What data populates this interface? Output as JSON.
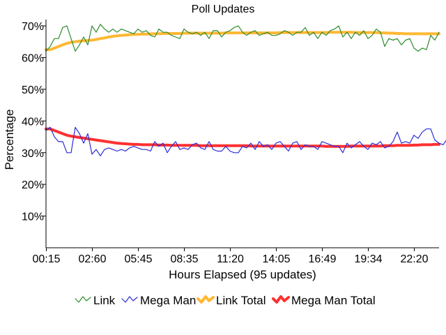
{
  "chart_data": {
    "type": "line",
    "title": "Poll Updates",
    "xlabel": "Hours Elapsed (95 updates)",
    "ylabel": "Percentage",
    "ylim": [
      0,
      72
    ],
    "y_ticks": [
      "10%",
      "20%",
      "30%",
      "40%",
      "50%",
      "60%",
      "70%"
    ],
    "y_tick_values": [
      10,
      20,
      30,
      40,
      50,
      60,
      70
    ],
    "x_ticks": [
      "00:15",
      "02:60",
      "05:45",
      "08:35",
      "11:20",
      "14:05",
      "16:49",
      "19:34",
      "22:20"
    ],
    "x_tick_indices": [
      0,
      11,
      22,
      33,
      44,
      55,
      66,
      77,
      88
    ],
    "update_count": 95,
    "legend_position": "bottom",
    "series": [
      {
        "name": "Link",
        "color": "#2e8b2e",
        "style": "thin",
        "values": [
          62,
          63.5,
          66,
          66,
          69.5,
          70,
          66,
          62,
          64,
          66.5,
          64,
          70,
          68,
          70.5,
          69,
          68,
          69,
          68,
          69,
          68.5,
          68,
          67.5,
          69,
          68,
          68.5,
          67,
          66.5,
          69,
          68,
          68,
          67,
          66.5,
          66,
          69,
          68,
          67.5,
          68,
          67,
          68,
          66,
          68.5,
          68.5,
          66.5,
          68,
          68.5,
          69.5,
          70,
          68,
          67,
          68,
          68.5,
          67,
          67.5,
          68,
          67,
          67,
          67.5,
          68.5,
          68,
          67,
          68,
          68,
          69.5,
          67,
          68,
          66,
          68,
          67,
          68.5,
          69,
          70,
          66.5,
          68,
          66,
          68,
          67,
          68.5,
          66,
          67,
          69,
          68,
          63.5,
          66,
          65.5,
          66,
          64,
          65.5,
          66,
          63,
          62,
          63,
          62.5,
          67,
          65.5,
          68
        ]
      },
      {
        "name": "Mega Man",
        "color": "#2b2bd8",
        "style": "thin",
        "values": [
          37,
          38,
          35,
          33.5,
          33.5,
          30,
          30,
          38,
          36,
          33,
          36,
          29.5,
          31,
          29,
          31,
          31.5,
          31,
          30.5,
          31,
          30.5,
          31.5,
          32,
          31.5,
          31,
          31,
          30.5,
          33.5,
          32,
          33,
          30,
          32,
          33.5,
          31,
          31.5,
          31,
          32.5,
          33,
          31.5,
          31,
          33.5,
          31,
          30.5,
          30.5,
          32,
          30.5,
          30,
          30,
          32,
          31.5,
          33,
          31,
          33.5,
          32,
          32.5,
          31,
          33,
          33.5,
          32,
          30.5,
          33,
          33.5,
          31,
          32.5,
          32,
          32,
          31,
          33.5,
          33,
          32.5,
          32,
          32,
          30,
          33,
          31.5,
          32.5,
          33.5,
          32,
          31,
          33,
          32.5,
          33.5,
          31.5,
          32,
          33.5,
          36.5,
          33,
          33.5,
          33,
          35.5,
          34.5,
          36.5,
          37.5,
          37.5,
          34,
          33,
          32.5,
          34.5,
          32
        ]
      },
      {
        "name": "Link Total",
        "color": "#ffb833",
        "style": "thick",
        "values": [
          62.5,
          62.5,
          63,
          63.5,
          64,
          64.5,
          64.8,
          65,
          65.2,
          65.3,
          65.4,
          65.5,
          65.7,
          66,
          66.2,
          66.5,
          66.7,
          66.9,
          67,
          67.1,
          67.2,
          67.3,
          67.3,
          67.4,
          67.4,
          67.5,
          67.5,
          67.5,
          67.6,
          67.6,
          67.6,
          67.6,
          67.6,
          67.7,
          67.7,
          67.7,
          67.7,
          67.7,
          67.7,
          67.7,
          67.7,
          67.7,
          67.7,
          67.8,
          67.8,
          67.8,
          67.8,
          67.8,
          67.8,
          67.8,
          67.8,
          67.8,
          67.8,
          67.8,
          67.8,
          67.8,
          67.9,
          67.9,
          67.9,
          67.9,
          67.9,
          67.9,
          67.9,
          67.9,
          67.9,
          67.9,
          67.9,
          67.9,
          68,
          68,
          68,
          68,
          68,
          68,
          67.9,
          67.9,
          67.9,
          67.9,
          67.9,
          67.9,
          67.8,
          67.8,
          67.7,
          67.7,
          67.6,
          67.6,
          67.5,
          67.5,
          67.5,
          67.5,
          67.5,
          67.5,
          67.5,
          67.5,
          67.5
        ]
      },
      {
        "name": "Mega Man Total",
        "color": "#ff3030",
        "style": "thick",
        "values": [
          37.5,
          37.5,
          37,
          36.5,
          36,
          35.5,
          35.2,
          35,
          34.8,
          34.6,
          34.4,
          34.2,
          34,
          33.8,
          33.6,
          33.4,
          33.2,
          33,
          32.9,
          32.8,
          32.7,
          32.6,
          32.6,
          32.5,
          32.5,
          32.5,
          32.5,
          32.4,
          32.4,
          32.4,
          32.3,
          32.3,
          32.3,
          32.3,
          32.3,
          32.3,
          32.3,
          32.2,
          32.2,
          32.2,
          32.2,
          32.2,
          32.2,
          32.2,
          32.2,
          32.2,
          32.2,
          32.2,
          32.2,
          32.1,
          32.1,
          32.1,
          32.1,
          32.1,
          32.1,
          32.1,
          32.1,
          32.1,
          32.1,
          32.1,
          32.1,
          32.1,
          32.1,
          32.1,
          32.1,
          32.1,
          32.1,
          32,
          32,
          32,
          32,
          32,
          32,
          32.1,
          32.1,
          32.1,
          32.1,
          32.1,
          32.1,
          32.1,
          32.1,
          32.2,
          32.2,
          32.2,
          32.3,
          32.3,
          32.3,
          32.3,
          32.4,
          32.4,
          32.5,
          32.5,
          32.5,
          32.6,
          32.6
        ]
      }
    ]
  }
}
